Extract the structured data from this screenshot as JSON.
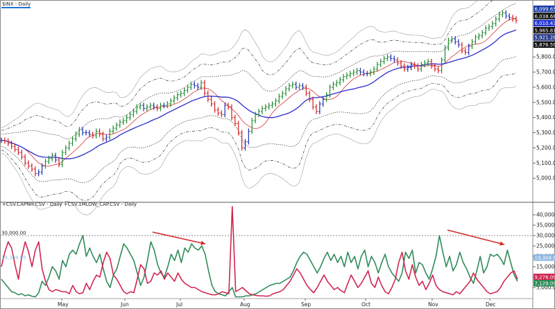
{
  "chart_data": [
    {
      "type": "ohlc",
      "title": "$INX - Daily",
      "months": [
        "May",
        "Jun",
        "Jul",
        "Aug",
        "Sep",
        "Oct",
        "Nov",
        "Dec"
      ],
      "ylim": [
        4850,
        6130
      ],
      "yticks": [
        5000,
        5100,
        5200,
        5300,
        5400,
        5500,
        5600,
        5700,
        5800
      ],
      "ytick_labels": [
        "5,000.00",
        "5,100.00",
        "5,200.00",
        "5,300.00",
        "5,400.00",
        "5,500.00",
        "5,600.00",
        "5,700.00",
        "5,800.00"
      ],
      "price_tags": [
        {
          "value": 6099.65,
          "label": "6,099.65",
          "color": "#1f3fa8"
        },
        {
          "value": 6038.68,
          "label": "6,038.68",
          "color": "#111111"
        },
        {
          "value": 6010.43,
          "label": "6,010.43",
          "color": "#2233cc"
        },
        {
          "value": 5965.81,
          "label": "5,965.81",
          "color": "#111111"
        },
        {
          "value": 5921.28,
          "label": "5,921.28",
          "color": "#2a3a8a"
        },
        {
          "value": 5876.59,
          "label": "5,876.59",
          "color": "#111111"
        }
      ],
      "close": [
        5250,
        5245,
        5230,
        5210,
        5190,
        5170,
        5140,
        5100,
        5080,
        5060,
        5030,
        5040,
        5080,
        5110,
        5130,
        5150,
        5120,
        5090,
        5170,
        5200,
        5230,
        5260,
        5290,
        5320,
        5300,
        5300,
        5290,
        5280,
        5310,
        5290,
        5260,
        5270,
        5310,
        5330,
        5350,
        5370,
        5380,
        5400,
        5420,
        5440,
        5470,
        5480,
        5460,
        5470,
        5480,
        5470,
        5460,
        5480,
        5480,
        5490,
        5510,
        5530,
        5550,
        5560,
        5580,
        5600,
        5620,
        5610,
        5600,
        5630,
        5560,
        5520,
        5490,
        5450,
        5430,
        5420,
        5480,
        5470,
        5400,
        5360,
        5300,
        5200,
        5240,
        5310,
        5380,
        5420,
        5440,
        5460,
        5470,
        5480,
        5490,
        5510,
        5540,
        5560,
        5590,
        5610,
        5620,
        5600,
        5610,
        5600,
        5560,
        5520,
        5470,
        5440,
        5490,
        5520,
        5550,
        5600,
        5620,
        5630,
        5650,
        5670,
        5680,
        5690,
        5700,
        5710,
        5700,
        5690,
        5690,
        5700,
        5720,
        5750,
        5770,
        5790,
        5800,
        5790,
        5780,
        5760,
        5740,
        5720,
        5730,
        5750,
        5740,
        5720,
        5750,
        5760,
        5770,
        5740,
        5720,
        5710,
        5780,
        5860,
        5910,
        5920,
        5900,
        5880,
        5840,
        5830,
        5870,
        5900,
        5930,
        5940,
        5960,
        5990,
        6000,
        6020,
        6050,
        6080,
        6090,
        6070,
        6060,
        6050,
        6040
      ],
      "overlays": [
        {
          "name": "upper-outer-band",
          "color": "#aaaaaa",
          "dash": "",
          "width": 0.7
        },
        {
          "name": "upper-dashdot-band",
          "color": "#333333",
          "dash": "4,2,1,2",
          "width": 0.7
        },
        {
          "name": "upper-dotted-band",
          "color": "#333333",
          "dash": "1.5,1.5",
          "width": 0.7
        },
        {
          "name": "short-ma",
          "color": "#d94a4a",
          "dash": "",
          "width": 0.9
        },
        {
          "name": "long-ma",
          "color": "#2a2ad0",
          "dash": "",
          "width": 1.3
        },
        {
          "name": "lower-dotted-band",
          "color": "#333333",
          "dash": "1.5,1.5",
          "width": 0.7
        },
        {
          "name": "lower-dashdot-band",
          "color": "#333333",
          "dash": "4,2,1,2",
          "width": 0.7
        },
        {
          "name": "lower-outer-band",
          "color": "#aaaaaa",
          "dash": "",
          "width": 0.7
        }
      ]
    },
    {
      "type": "line",
      "title": "+CSV.CAPNH.CSV - Daily  +CSV.1MLOW_CAP.CSV - Daily",
      "ylim": [
        0,
        44000
      ],
      "yticks": [
        5000,
        10000,
        15000,
        20000,
        25000,
        30000,
        35000,
        40000
      ],
      "ytick_labels": [
        "5,000.00",
        "10,000.00",
        "15,000.00",
        "20,000.00",
        "25,000.00",
        "30,000.00",
        "35,000.00",
        "40,000.00"
      ],
      "reference_line": {
        "value": 30000,
        "label": "30,000.00"
      },
      "series": [
        {
          "name": "CAPNH",
          "color": "#2e8b57",
          "values": [
            9000,
            7000,
            5000,
            3000,
            2500,
            1500,
            2000,
            1000,
            1500,
            800,
            500,
            2500,
            8000,
            6000,
            10000,
            15000,
            13000,
            9000,
            18000,
            15000,
            21000,
            23000,
            21000,
            26000,
            30000,
            20000,
            24000,
            20000,
            17000,
            21000,
            14000,
            8000,
            5000,
            11000,
            14000,
            20000,
            26000,
            24000,
            21000,
            18000,
            12000,
            6000,
            10000,
            18000,
            27000,
            23000,
            16000,
            12000,
            10000,
            15000,
            21000,
            18000,
            23000,
            17000,
            24000,
            22000,
            26000,
            24000,
            23000,
            25000,
            21000,
            13000,
            6000,
            3000,
            2000,
            1500,
            1000,
            3000,
            5000,
            500,
            500,
            500,
            1000,
            1000,
            1500,
            2000,
            3000,
            4000,
            5000,
            6000,
            6500,
            7000,
            7000,
            8000,
            9000,
            10000,
            13000,
            17000,
            20000,
            22000,
            21000,
            18000,
            15000,
            12000,
            15000,
            19000,
            22000,
            18000,
            21000,
            17000,
            20000,
            15000,
            22000,
            17000,
            20000,
            14000,
            20000,
            23000,
            15000,
            20000,
            17000,
            12000,
            17000,
            21000,
            15000,
            12000,
            10000,
            8000,
            12000,
            22000,
            19000,
            23000,
            12000,
            17000,
            16000,
            12000,
            9000,
            14000,
            20000,
            30000,
            22000,
            15000,
            20000,
            13000,
            16000,
            22000,
            17000,
            14000,
            10000,
            7000,
            13000,
            20000,
            12000,
            15000,
            21000,
            20000,
            21000,
            19000,
            16000,
            23000,
            17000,
            11000,
            8000
          ]
        },
        {
          "name": "1MLOW_CAP",
          "color": "#d0254f",
          "values": [
            15000,
            22000,
            27000,
            24000,
            16000,
            9000,
            20000,
            27000,
            22000,
            15000,
            23000,
            27000,
            14000,
            8000,
            4000,
            3000,
            4000,
            3500,
            3000,
            3000,
            2000,
            6000,
            3000,
            2000,
            2500,
            7000,
            4000,
            8000,
            11000,
            10000,
            17000,
            22000,
            19000,
            11000,
            9000,
            6000,
            3000,
            2000,
            3000,
            2500,
            9000,
            16000,
            14000,
            7000,
            8000,
            12000,
            11000,
            13000,
            9000,
            12000,
            10000,
            8000,
            12000,
            9000,
            7000,
            6000,
            5000,
            5000,
            4000,
            3000,
            2500,
            2000,
            1500,
            1500,
            2000,
            3000,
            2500,
            2000,
            44000,
            3000,
            4000,
            5000,
            3500,
            2000,
            1500,
            1200,
            1000,
            1000,
            800,
            1000,
            2000,
            2500,
            3000,
            4000,
            6000,
            8000,
            11000,
            14000,
            12000,
            9000,
            6000,
            4000,
            2500,
            5000,
            8000,
            11000,
            8000,
            6000,
            4000,
            5000,
            3500,
            2500,
            7000,
            11000,
            8000,
            5000,
            7000,
            10000,
            13000,
            7000,
            5000,
            10000,
            6000,
            3000,
            2000,
            5000,
            9000,
            17000,
            22000,
            13000,
            9000,
            16000,
            10000,
            6000,
            8000,
            4000,
            7000,
            11000,
            6000,
            4000,
            3000,
            2500,
            2000,
            1500,
            3000,
            2000,
            4000,
            6000,
            8000,
            12000,
            9000,
            7000,
            5000,
            3000,
            2000,
            2500,
            3000,
            5000,
            8000,
            10000,
            12000,
            13000,
            9000
          ]
        }
      ],
      "price_tags": [
        {
          "value": 19304.95,
          "label": "19,304.95",
          "color": "#8fb8e0"
        },
        {
          "value": 9276.09,
          "label": "9,276.09",
          "color": "#d0254f"
        },
        {
          "value": 7129.09,
          "label": "7,129.09",
          "color": "#2e8b57"
        }
      ],
      "annotations": [
        {
          "type": "arrow",
          "color": "#d42a2a",
          "x1_frac": 0.0,
          "y1": 40500,
          "x2_frac": 1.0,
          "y2": 34300,
          "segment": "upper-left"
        },
        {
          "type": "arrow",
          "color": "#d42a2a",
          "segment": "upper-right"
        }
      ]
    }
  ]
}
